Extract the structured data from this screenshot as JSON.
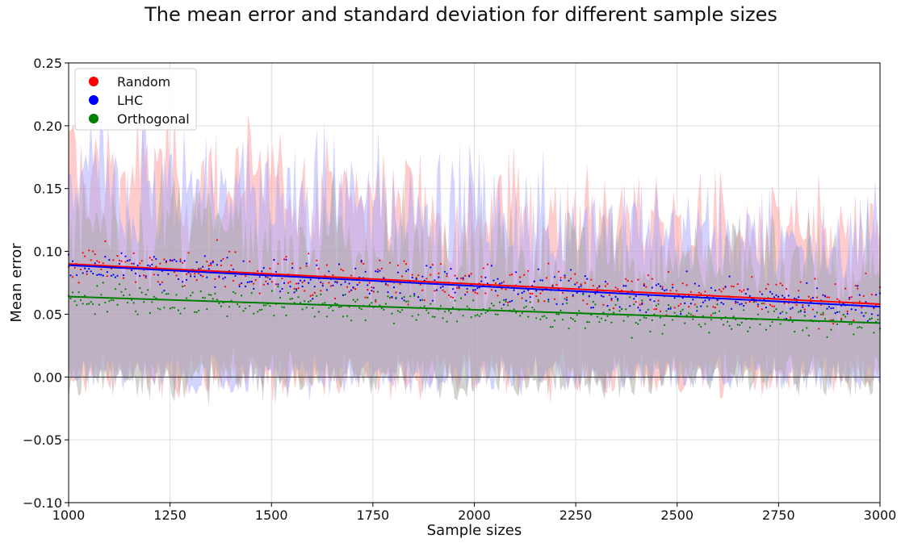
{
  "chart_data": {
    "type": "scatter",
    "title": "The mean error and standard deviation for different sample sizes",
    "xlabel": "Sample sizes",
    "ylabel": "Mean error",
    "xlim": [
      1000,
      3000
    ],
    "ylim": [
      -0.1,
      0.25
    ],
    "x_ticks": [
      "1000",
      "1250",
      "1500",
      "1750",
      "2000",
      "2250",
      "2500",
      "2750",
      "3000"
    ],
    "y_ticks": [
      "−0.10",
      "−0.05",
      "0.00",
      "0.05",
      "0.10",
      "0.15",
      "0.20",
      "0.25"
    ],
    "grid": true,
    "legend_position": "top-left",
    "zero_line": true,
    "series": [
      {
        "name": "Random",
        "color": "#ff0000",
        "band_color": "#ff9a9a",
        "trend": {
          "x": [
            1000,
            3000
          ],
          "y": [
            0.09,
            0.058
          ]
        },
        "mean_points": {
          "x_range": [
            1000,
            3000
          ],
          "approx_count": 400,
          "center_start": 0.09,
          "center_end": 0.058,
          "spread": 0.016
        },
        "std_band": {
          "upper_start": 0.165,
          "upper_end": 0.105,
          "lower_start": 0.005,
          "lower_end": 0.005
        }
      },
      {
        "name": "LHC",
        "color": "#0000ff",
        "band_color": "#a8a8ff",
        "trend": {
          "x": [
            1000,
            3000
          ],
          "y": [
            0.089,
            0.056
          ]
        },
        "mean_points": {
          "x_range": [
            1000,
            3000
          ],
          "approx_count": 400,
          "center_start": 0.089,
          "center_end": 0.056,
          "spread": 0.014
        },
        "std_band": {
          "upper_start": 0.16,
          "upper_end": 0.102,
          "lower_start": 0.005,
          "lower_end": 0.005
        }
      },
      {
        "name": "Orthogonal",
        "color": "#008000",
        "band_color": "#a8a8a0",
        "trend": {
          "x": [
            1000,
            3000
          ],
          "y": [
            0.064,
            0.043
          ]
        },
        "mean_points": {
          "x_range": [
            1000,
            3000
          ],
          "approx_count": 400,
          "center_start": 0.064,
          "center_end": 0.043,
          "spread": 0.011
        },
        "std_band": {
          "upper_start": 0.12,
          "upper_end": 0.082,
          "lower_start": 0.004,
          "lower_end": 0.004
        }
      }
    ]
  }
}
